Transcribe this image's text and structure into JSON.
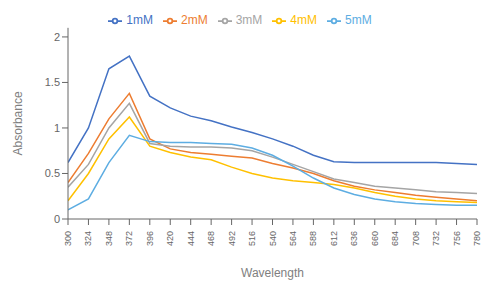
{
  "chart_data": {
    "type": "line",
    "x": [
      300,
      324,
      348,
      372,
      396,
      420,
      444,
      468,
      492,
      516,
      540,
      564,
      588,
      612,
      636,
      660,
      684,
      708,
      732,
      756,
      780
    ],
    "series": [
      {
        "name": "1mM",
        "color": "#4472C4",
        "values": [
          0.62,
          1.0,
          1.65,
          1.79,
          1.35,
          1.22,
          1.13,
          1.08,
          1.01,
          0.95,
          0.88,
          0.8,
          0.7,
          0.63,
          0.62,
          0.62,
          0.62,
          0.62,
          0.62,
          0.61,
          0.6
        ]
      },
      {
        "name": "2mM",
        "color": "#ED7D31",
        "values": [
          0.4,
          0.72,
          1.1,
          1.38,
          0.88,
          0.77,
          0.73,
          0.71,
          0.69,
          0.67,
          0.61,
          0.56,
          0.5,
          0.42,
          0.36,
          0.32,
          0.29,
          0.26,
          0.24,
          0.22,
          0.2
        ]
      },
      {
        "name": "3mM",
        "color": "#A5A5A5",
        "values": [
          0.35,
          0.6,
          1.0,
          1.27,
          0.83,
          0.8,
          0.79,
          0.79,
          0.78,
          0.75,
          0.68,
          0.6,
          0.52,
          0.44,
          0.4,
          0.36,
          0.34,
          0.32,
          0.3,
          0.29,
          0.28
        ]
      },
      {
        "name": "4mM",
        "color": "#FFC000",
        "values": [
          0.2,
          0.5,
          0.88,
          1.12,
          0.8,
          0.73,
          0.68,
          0.65,
          0.57,
          0.5,
          0.45,
          0.42,
          0.4,
          0.38,
          0.34,
          0.29,
          0.25,
          0.22,
          0.2,
          0.19,
          0.18
        ]
      },
      {
        "name": "5mM",
        "color": "#5DADE2",
        "values": [
          0.1,
          0.22,
          0.62,
          0.92,
          0.85,
          0.84,
          0.84,
          0.83,
          0.82,
          0.78,
          0.7,
          0.58,
          0.45,
          0.34,
          0.27,
          0.22,
          0.19,
          0.17,
          0.16,
          0.15,
          0.15
        ]
      }
    ],
    "xlabel": "Wavelength",
    "ylabel": "Absorbance",
    "xlim": [
      300,
      780
    ],
    "xticks": [
      300,
      324,
      348,
      372,
      396,
      420,
      444,
      468,
      492,
      516,
      540,
      564,
      588,
      612,
      636,
      660,
      684,
      708,
      732,
      756,
      780
    ],
    "ylim": [
      0,
      2.1
    ],
    "yticks": [
      0,
      0.5,
      1,
      1.5,
      2
    ],
    "legend": "top"
  }
}
